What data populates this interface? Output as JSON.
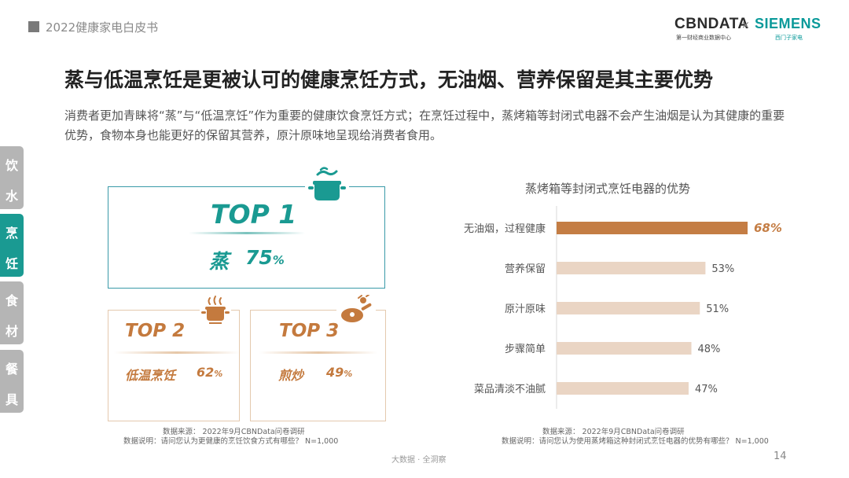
{
  "header": {
    "report_title": "2022健康家电白皮书",
    "logo_cbndata": "CBNDATA",
    "logo_cbndata_sub": "第一财经商业数据中心",
    "logo_x": "×",
    "logo_siemens": "SIEMENS",
    "logo_siemens_sub": "西门子家电"
  },
  "main_title": "蒸与低温烹饪是更被认可的健康烹饪方式，无油烟、营养保留是其主要优势",
  "subtitle": "消费者更加青睐将“蒸”与“低温烹饪”作为重要的健康饮食烹饪方式；在烹饪过程中，蒸烤箱等封闭式电器不会产生油烟是认为其健康的重要优势，食物本身也能更好的保留其营养，原汁原味地呈现给消费者食用。",
  "side_nav": [
    {
      "chars": [
        "饮",
        "水"
      ],
      "active": false
    },
    {
      "chars": [
        "烹",
        "饪"
      ],
      "active": true
    },
    {
      "chars": [
        "食",
        "材"
      ],
      "active": false
    },
    {
      "chars": [
        "餐",
        "具"
      ],
      "active": false
    }
  ],
  "ranking": {
    "top1": {
      "rank": "TOP 1",
      "name": "蒸",
      "value": "75",
      "unit": "%"
    },
    "top2": {
      "rank": "TOP 2",
      "name": "低温烹饪",
      "value": "62",
      "unit": "%"
    },
    "top3": {
      "rank": "TOP 3",
      "name": "煎炒",
      "value": "49",
      "unit": "%"
    }
  },
  "left_source": {
    "line1": "数据来源：  2022年9月CBNData问卷调研",
    "line2": "数据说明：请问您认为更健康的烹饪饮食方式有哪些？ N=1,000"
  },
  "right_source": {
    "line1": "数据来源：  2022年9月CBNData问卷调研",
    "line2": "数据说明：请问您认为使用蒸烤箱这种封闭式烹饪电器的优势有哪些？ N=1,000"
  },
  "chart_data": {
    "type": "bar",
    "orientation": "horizontal",
    "title": "蒸烤箱等封闭式烹饪电器的优势",
    "categories": [
      "无油烟，过程健康",
      "营养保留",
      "原汁原味",
      "步骤简单",
      "菜品清淡不油腻"
    ],
    "values": [
      68,
      53,
      51,
      48,
      47
    ],
    "value_labels": [
      "68%",
      "53%",
      "51%",
      "48%",
      "47%"
    ],
    "unit": "%",
    "xlim": [
      0,
      68
    ],
    "highlight_index": 0,
    "colors": {
      "highlight": "#c47d44",
      "normal": "#ead5c4",
      "highlight_label": "#c47d44",
      "normal_label": "#555555"
    }
  },
  "footer": {
    "center": "大数据 · 全洞察",
    "page_number": "14"
  }
}
